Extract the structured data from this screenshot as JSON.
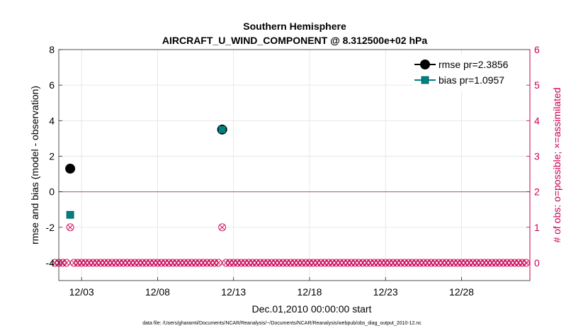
{
  "chart_data": {
    "type": "scatter",
    "title": "Southern Hemisphere",
    "subtitle": "AIRCRAFT_U_WIND_COMPONENT @ 8.312500e+02 hPa",
    "xlabel": "Dec.01,2010 00:00:00 start",
    "ylabel": "rmse and bias (model - observation)",
    "ylabel_right": "# of obs: o=possible; ×=assimilated",
    "xlim": [
      0.5,
      31.5
    ],
    "ylim": [
      -5,
      8
    ],
    "ylim_right": [
      -0.5,
      6
    ],
    "x_ticks": [
      2,
      7,
      12,
      17,
      22,
      27
    ],
    "x_tick_labels": [
      "12/03",
      "12/08",
      "12/13",
      "12/18",
      "12/23",
      "12/28"
    ],
    "y_ticks": [
      -4,
      -2,
      0,
      2,
      4,
      6,
      8
    ],
    "y_tick_labels": [
      "-4",
      "-2",
      "0",
      "2",
      "4",
      "6",
      "8"
    ],
    "y_ticks_right": [
      0,
      1,
      2,
      3,
      4,
      5,
      6
    ],
    "y_tick_labels_right": [
      "0",
      "1",
      "2",
      "3",
      "4",
      "5",
      "6"
    ],
    "grid": true,
    "legend_position": "top-right",
    "footer": "data file: /Users/gharamti/Documents/NCAR/Reanalysis/~/Documents/NCAR/Reanalysis/webpub/obs_diag_output_2010-12.nc",
    "series": [
      {
        "name": "rmse pr=2.3856",
        "color": "#000000",
        "marker": "circle",
        "x": [
          1.25,
          11.25
        ],
        "y": [
          1.3,
          3.5
        ]
      },
      {
        "name": "bias pr=1.0957",
        "color": "#008080",
        "marker": "square",
        "x": [
          1.25,
          11.25
        ],
        "y": [
          -1.3,
          3.5
        ]
      }
    ],
    "obs_counts": {
      "color": "#cc0055",
      "start": 0.25,
      "step": 0.25,
      "values": [
        0,
        0,
        0,
        0,
        1,
        0,
        0,
        0,
        0,
        0,
        0,
        0,
        0,
        0,
        0,
        0,
        0,
        0,
        0,
        0,
        0,
        0,
        0,
        0,
        0,
        0,
        0,
        0,
        0,
        0,
        0,
        0,
        0,
        0,
        0,
        0,
        0,
        0,
        0,
        0,
        0,
        0,
        0,
        0,
        1,
        0,
        0,
        0,
        0,
        0,
        0,
        0,
        0,
        0,
        0,
        0,
        0,
        0,
        0,
        0,
        0,
        0,
        0,
        0,
        0,
        0,
        0,
        0,
        0,
        0,
        0,
        0,
        0,
        0,
        0,
        0,
        0,
        0,
        0,
        0,
        0,
        0,
        0,
        0,
        0,
        0,
        0,
        0,
        0,
        0,
        0,
        0,
        0,
        0,
        0,
        0,
        0,
        0,
        0,
        0,
        0,
        0,
        0,
        0,
        0,
        0,
        0,
        0,
        0,
        0,
        0,
        0,
        0,
        0,
        0,
        0,
        0,
        0,
        0,
        0,
        0,
        0,
        0,
        0,
        0
      ]
    }
  }
}
